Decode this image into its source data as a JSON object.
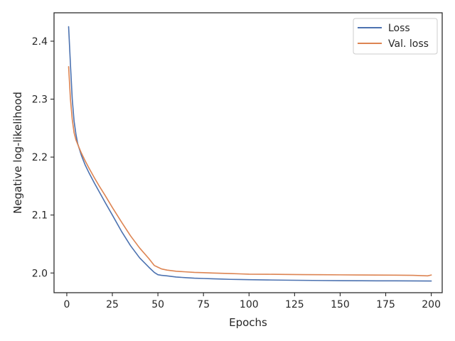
{
  "chart_data": {
    "type": "line",
    "title": "",
    "xlabel": "Epochs",
    "ylabel": "Negative log-likelihood",
    "xlim": [
      -7,
      206
    ],
    "ylim": [
      1.966,
      2.449
    ],
    "xticks": [
      0,
      25,
      50,
      75,
      100,
      125,
      150,
      175,
      200
    ],
    "yticks": [
      2.0,
      2.1,
      2.2,
      2.3,
      2.4
    ],
    "xtick_labels": [
      "0",
      "25",
      "50",
      "75",
      "100",
      "125",
      "150",
      "175",
      "200"
    ],
    "ytick_labels": [
      "2.0",
      "2.1",
      "2.2",
      "2.3",
      "2.4"
    ],
    "grid": false,
    "legend_position": "top-right",
    "series": [
      {
        "name": "Loss",
        "color": "#4c72b0",
        "x": [
          1,
          2,
          3,
          4,
          5,
          6,
          8,
          10,
          12,
          15,
          18,
          21,
          25,
          30,
          35,
          40,
          45,
          48,
          50,
          52,
          55,
          60,
          65,
          70,
          75,
          80,
          85,
          90,
          95,
          100,
          110,
          120,
          130,
          140,
          150,
          160,
          170,
          180,
          190,
          200
        ],
        "y": [
          2.425,
          2.36,
          2.3,
          2.262,
          2.24,
          2.223,
          2.203,
          2.187,
          2.174,
          2.156,
          2.139,
          2.122,
          2.1,
          2.072,
          2.047,
          2.026,
          2.01,
          2.001,
          1.997,
          1.996,
          1.995,
          1.993,
          1.992,
          1.991,
          1.9905,
          1.99,
          1.9895,
          1.989,
          1.9888,
          1.9885,
          1.988,
          1.9876,
          1.9873,
          1.987,
          1.9868,
          1.9866,
          1.9865,
          1.9864,
          1.9863,
          1.9862
        ]
      },
      {
        "name": "Val. loss",
        "color": "#dd8452",
        "x": [
          1,
          2,
          3,
          4,
          5,
          6,
          8,
          10,
          12,
          15,
          18,
          21,
          25,
          30,
          35,
          40,
          45,
          48,
          50,
          52,
          55,
          60,
          65,
          70,
          75,
          80,
          85,
          90,
          95,
          100,
          110,
          120,
          130,
          140,
          150,
          160,
          170,
          180,
          190,
          198,
          200
        ],
        "y": [
          2.356,
          2.3,
          2.265,
          2.242,
          2.23,
          2.222,
          2.207,
          2.194,
          2.182,
          2.165,
          2.149,
          2.134,
          2.113,
          2.088,
          2.064,
          2.043,
          2.025,
          2.013,
          2.01,
          2.007,
          2.005,
          2.003,
          2.002,
          2.001,
          2.0005,
          2.0,
          1.9995,
          1.999,
          1.9985,
          1.998,
          1.9978,
          1.9975,
          1.9972,
          1.997,
          1.9968,
          1.9966,
          1.9964,
          1.9962,
          1.996,
          1.995,
          1.9965
        ]
      }
    ]
  }
}
